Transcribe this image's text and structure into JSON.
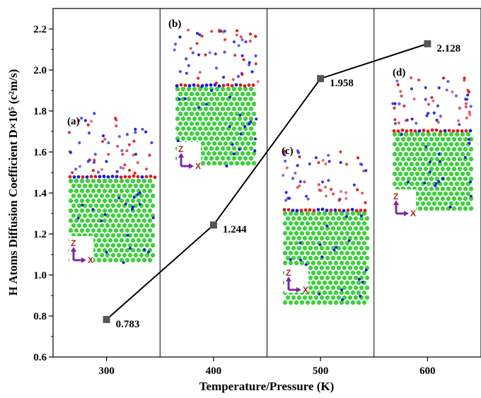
{
  "chart_data": {
    "type": "line",
    "x": [
      300,
      400,
      500,
      600
    ],
    "values": [
      0.783,
      1.244,
      1.958,
      2.128
    ],
    "data_labels": [
      "0.783",
      "1.244",
      "1.958",
      "2.128"
    ],
    "xlabel": "Temperature/Pressure (K)",
    "ylabel": "H Atoms Diffusion Coefficient D×10⁵ (c²m/s)",
    "xlim": [
      250,
      650
    ],
    "ylim": [
      0.6,
      2.3
    ],
    "x_ticks": [
      "300",
      "400",
      "500",
      "600"
    ],
    "y_ticks": [
      "0.6",
      "0.8",
      "1.0",
      "1.2",
      "1.4",
      "1.6",
      "1.8",
      "2.0",
      "2.2"
    ],
    "grid": false,
    "legend": "none",
    "line_color": "#000000",
    "marker_color": "#555555",
    "inset_panels": [
      {
        "label": "(a)",
        "axis_z": "Z",
        "axis_x": "X"
      },
      {
        "label": "(b)",
        "axis_z": "Z",
        "axis_x": "X"
      },
      {
        "label": "(c)",
        "axis_z": "Z",
        "axis_x": "X"
      },
      {
        "label": "(d)",
        "axis_z": "Z",
        "axis_x": "X"
      }
    ],
    "atom_colors": {
      "substrate": "#2ecc2e",
      "hydrogen": "#1a1adc",
      "oxygen": "#dc1a1a"
    }
  }
}
